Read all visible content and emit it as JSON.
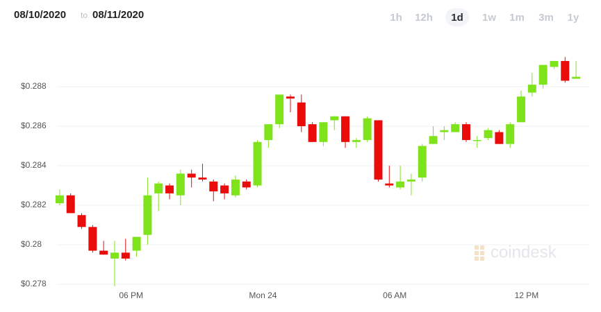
{
  "header": {
    "from": "08/10/2020",
    "to_text": "to",
    "to": "08/11/2020",
    "ranges": [
      "1h",
      "12h",
      "1d",
      "1w",
      "1m",
      "3m",
      "1y"
    ],
    "selected_range": "1d"
  },
  "watermark": "coindesk",
  "chart_data": {
    "type": "candlestick",
    "categories": [
      null,
      null,
      null,
      null,
      null,
      null,
      "06 PM",
      null,
      null,
      null,
      null,
      null,
      null,
      null,
      null,
      null,
      null,
      null,
      "Mon 24",
      null,
      null,
      null,
      null,
      null,
      null,
      null,
      null,
      null,
      null,
      null,
      "06 AM",
      null,
      null,
      null,
      null,
      null,
      null,
      null,
      null,
      null,
      null,
      null,
      "12 PM",
      null,
      null,
      null,
      null,
      null
    ],
    "open": [
      0.2821,
      0.2825,
      0.2815,
      0.2809,
      0.2797,
      0.2793,
      0.2796,
      0.2797,
      0.2805,
      0.2826,
      0.283,
      0.2825,
      0.2836,
      0.2834,
      0.2832,
      0.283,
      0.2825,
      0.2832,
      0.283,
      0.2853,
      0.2861,
      0.2875,
      0.2872,
      0.2861,
      0.2852,
      0.2863,
      0.2865,
      0.2852,
      0.2853,
      0.2863,
      0.2831,
      0.2829,
      0.2832,
      0.2834,
      0.2851,
      0.2857,
      0.2857,
      0.2861,
      0.2853,
      0.2854,
      0.2857,
      0.2851,
      0.2862,
      0.2877,
      0.2881,
      0.289,
      0.2893,
      0.2884
    ],
    "high": [
      0.2828,
      0.2826,
      0.2816,
      0.281,
      0.2802,
      0.2802,
      0.2803,
      0.2804,
      0.2834,
      0.2832,
      0.2831,
      0.2838,
      0.2838,
      0.2841,
      0.2833,
      0.2831,
      0.2835,
      0.2833,
      0.2853,
      0.2861,
      0.2876,
      0.2876,
      0.2876,
      0.2862,
      0.2862,
      0.2865,
      0.2865,
      0.2854,
      0.2865,
      0.2863,
      0.284,
      0.284,
      0.2836,
      0.2851,
      0.286,
      0.286,
      0.2862,
      0.2862,
      0.2855,
      0.2859,
      0.2858,
      0.2862,
      0.2878,
      0.2887,
      0.2891,
      0.2893,
      0.2895,
      0.2893
    ],
    "low": [
      0.282,
      0.2816,
      0.2808,
      0.2796,
      0.2795,
      0.2779,
      0.2792,
      0.2794,
      0.28,
      0.2817,
      0.2823,
      0.282,
      0.2829,
      0.2832,
      0.2822,
      0.2823,
      0.2824,
      0.2828,
      0.2829,
      0.2849,
      0.2859,
      0.2867,
      0.2857,
      0.2852,
      0.285,
      0.2858,
      0.2849,
      0.2849,
      0.2852,
      0.2832,
      0.2829,
      0.2828,
      0.2825,
      0.2832,
      0.2851,
      0.2853,
      0.2857,
      0.2852,
      0.2849,
      0.2853,
      0.2851,
      0.2849,
      0.2862,
      0.2875,
      0.2879,
      0.2889,
      0.2882,
      0.2884
    ],
    "close": [
      0.2825,
      0.2816,
      0.2809,
      0.2797,
      0.2795,
      0.2796,
      0.2793,
      0.2804,
      0.2825,
      0.2831,
      0.2826,
      0.2836,
      0.2834,
      0.2833,
      0.2827,
      0.2826,
      0.2833,
      0.2829,
      0.2852,
      0.2861,
      0.2876,
      0.2874,
      0.286,
      0.2852,
      0.2862,
      0.2865,
      0.2852,
      0.2853,
      0.2864,
      0.2833,
      0.283,
      0.2832,
      0.2833,
      0.285,
      0.2855,
      0.2858,
      0.2861,
      0.2853,
      0.2853,
      0.2858,
      0.2851,
      0.2861,
      0.2875,
      0.2881,
      0.2891,
      0.2893,
      0.2883,
      0.2885
    ],
    "up_color": "#7fe31c",
    "down_color": "#ea0b0b",
    "ylim": [
      0.2776,
      0.2896
    ],
    "yticks": [
      {
        "value": 0.278,
        "label": "$0.278"
      },
      {
        "value": 0.28,
        "label": "$0.28"
      },
      {
        "value": 0.282,
        "label": "$0.282"
      },
      {
        "value": 0.284,
        "label": "$0.284"
      },
      {
        "value": 0.286,
        "label": "$0.286"
      },
      {
        "value": 0.288,
        "label": "$0.288"
      }
    ],
    "grid": true
  }
}
